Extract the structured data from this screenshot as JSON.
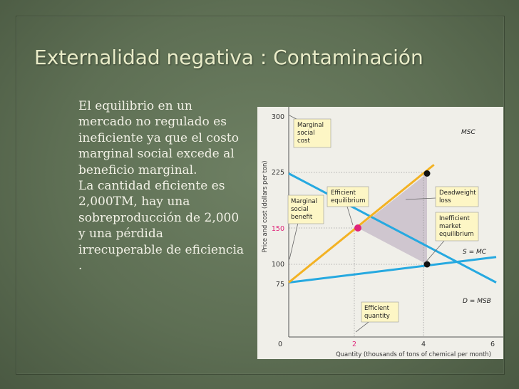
{
  "slide": {
    "title": "Externalidad negativa : Contaminación",
    "paragraphs": [
      "El equilibrio en un mercado no regulado es ineficiente ya que el  costo marginal social excede al beneficio marginal.",
      "La cantidad eficiente es",
      "2,000TM, hay una sobreproducción de 2,000 y una pérdida irrecuperable de eficiencia ."
    ]
  },
  "chart_data": {
    "type": "line",
    "xlabel": "Quantity (thousands of tons of chemical per month)",
    "ylabel": "Price and cost (dollars per ton)",
    "x_ticks": [
      "0",
      "2",
      "4",
      "6"
    ],
    "y_ticks": [
      "75",
      "100",
      "150",
      "225",
      "300"
    ],
    "xlim": [
      0,
      6.3
    ],
    "ylim": [
      0,
      310
    ],
    "grid": false,
    "series": [
      {
        "name": "MSC",
        "x": [
          0,
          4.2
        ],
        "y": [
          75,
          237
        ],
        "color": "#f3b223"
      },
      {
        "name": "D = MSB",
        "x": [
          0,
          6
        ],
        "y": [
          225,
          75
        ],
        "color": "#26a9e0"
      },
      {
        "name": "S = MC",
        "x": [
          0,
          6
        ],
        "y": [
          75,
          110
        ],
        "color": "#26a9e0"
      }
    ],
    "points": [
      {
        "x": 2,
        "y": 150,
        "color": "#e0247a"
      },
      {
        "x": 4,
        "y": 225,
        "color": "#111111"
      },
      {
        "x": 4,
        "y": 100,
        "color": "#111111"
      }
    ],
    "deadweight_area": {
      "x": [
        2,
        4,
        4
      ],
      "y": [
        150,
        225,
        100
      ],
      "color": "#cfc6cf"
    },
    "annotations": [
      {
        "text": "Marginal social cost"
      },
      {
        "text": "Marginal social benefit"
      },
      {
        "text": "Efficient equilibrium"
      },
      {
        "text": "Deadweight loss"
      },
      {
        "text": "Inefficient market equilibrium"
      },
      {
        "text": "Efficient quantity"
      }
    ],
    "highlight_color": "#e0247a"
  }
}
